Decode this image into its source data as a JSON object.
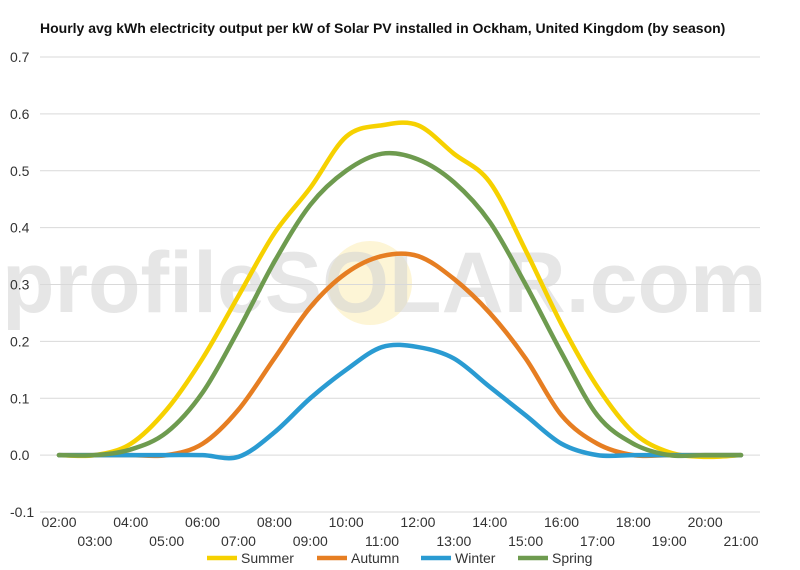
{
  "chart_data": {
    "type": "line",
    "title": "Hourly avg kWh electricity output per kW of Solar PV installed in Ockham, United Kingdom (by season)",
    "x_labels": [
      "02:00",
      "03:00",
      "04:00",
      "05:00",
      "06:00",
      "07:00",
      "08:00",
      "09:00",
      "10:00",
      "11:00",
      "12:00",
      "13:00",
      "14:00",
      "15:00",
      "16:00",
      "17:00",
      "18:00",
      "19:00",
      "20:00",
      "21:00"
    ],
    "y_ticks": [
      "0.7",
      "0.6",
      "0.5",
      "0.4",
      "0.3",
      "0.2",
      "0.1",
      "0.0",
      "-0.1"
    ],
    "ylim": [
      -0.1,
      0.7
    ],
    "grid": true,
    "legend_position": "bottom",
    "watermark": "profileSOLAR.com",
    "series": [
      {
        "name": "Summer",
        "color": "#f6d100",
        "values": [
          0,
          0,
          0.02,
          0.08,
          0.17,
          0.28,
          0.39,
          0.47,
          0.56,
          0.58,
          0.58,
          0.53,
          0.48,
          0.36,
          0.23,
          0.12,
          0.04,
          0.005,
          -0.003,
          0
        ]
      },
      {
        "name": "Autumn",
        "color": "#e67e22",
        "values": [
          0,
          0,
          0,
          0,
          0.02,
          0.08,
          0.17,
          0.26,
          0.32,
          0.35,
          0.35,
          0.31,
          0.25,
          0.17,
          0.07,
          0.02,
          0,
          0,
          0,
          0
        ]
      },
      {
        "name": "Winter",
        "color": "#2a9bd2",
        "values": [
          0,
          0,
          0,
          0,
          0,
          -0.003,
          0.04,
          0.1,
          0.15,
          0.19,
          0.19,
          0.17,
          0.12,
          0.07,
          0.02,
          0,
          0,
          0,
          0,
          0
        ]
      },
      {
        "name": "Spring",
        "color": "#6e9b4f",
        "values": [
          0,
          0,
          0.01,
          0.04,
          0.11,
          0.22,
          0.34,
          0.44,
          0.5,
          0.53,
          0.52,
          0.48,
          0.41,
          0.3,
          0.18,
          0.07,
          0.02,
          0,
          0,
          0
        ]
      }
    ]
  }
}
